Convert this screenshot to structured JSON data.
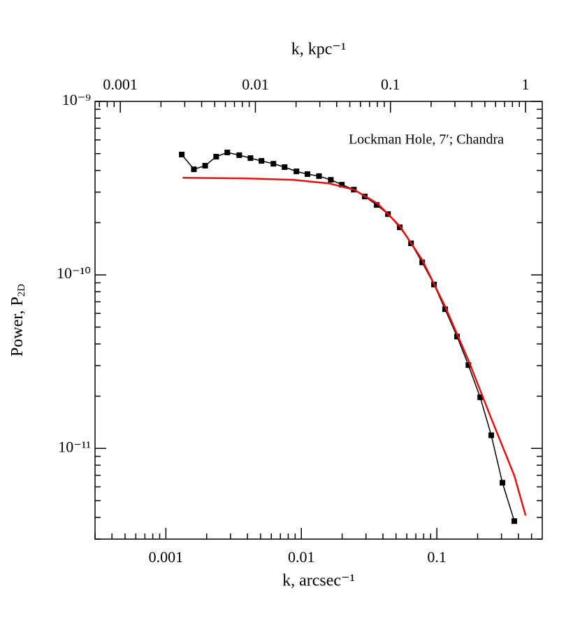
{
  "chart_data": {
    "type": "line",
    "annotation": "Lockman Hole, 7′; Chandra",
    "x_label": "k, arcsec⁻¹",
    "x2_label": "k, kpc⁻¹",
    "y_label": {
      "text": "Power, P",
      "subscript": "2D"
    },
    "xscale": "log",
    "yscale": "log",
    "xlim": [
      0.0003,
      0.6
    ],
    "xticks": [
      0.001,
      0.01,
      0.1
    ],
    "x2lim": [
      0.00065,
      1.33
    ],
    "x2ticks": [
      0.001,
      0.01,
      0.1,
      1
    ],
    "ylim": [
      3e-12,
      1e-09
    ],
    "yticks": [
      {
        "value": 1e-09,
        "label": "10⁻⁹"
      },
      {
        "value": 1e-10,
        "label": "10⁻¹⁰"
      },
      {
        "value": 1e-11,
        "label": "10⁻¹¹"
      }
    ],
    "series": [
      {
        "color": "#000000",
        "markers": true,
        "x": [
          0.00131,
          0.00161,
          0.00195,
          0.00235,
          0.00284,
          0.00348,
          0.00421,
          0.00508,
          0.00622,
          0.00752,
          0.0092,
          0.0111,
          0.0135,
          0.0165,
          0.0199,
          0.0244,
          0.0294,
          0.036,
          0.0436,
          0.0533,
          0.0645,
          0.078,
          0.0953,
          0.115,
          0.141,
          0.171,
          0.209,
          0.252,
          0.305,
          0.373
        ],
        "y": [
          4.94e-10,
          4.06e-10,
          4.26e-10,
          4.8e-10,
          5.08e-10,
          4.9e-10,
          4.71e-10,
          4.54e-10,
          4.37e-10,
          4.18e-10,
          3.95e-10,
          3.81e-10,
          3.71e-10,
          3.53e-10,
          3.31e-10,
          3.1e-10,
          2.83e-10,
          2.53e-10,
          2.24e-10,
          1.88e-10,
          1.52e-10,
          1.18e-10,
          8.8e-11,
          6.34e-11,
          4.41e-11,
          3.02e-11,
          1.97e-11,
          1.19e-11,
          6.34e-12,
          3.81e-12
        ]
      },
      {
        "color": "#e8100f",
        "markers": false,
        "x": [
          0.00133,
          0.00382,
          0.00877,
          0.0159,
          0.0244,
          0.0365,
          0.0533,
          0.078,
          0.115,
          0.171,
          0.252,
          0.373,
          0.452
        ],
        "y": [
          3.63e-10,
          3.6e-10,
          3.53e-10,
          3.37e-10,
          3.1e-10,
          2.58e-10,
          1.91e-10,
          1.22e-10,
          6.59e-11,
          3.22e-11,
          1.49e-11,
          6.97e-12,
          4.1e-12
        ]
      }
    ]
  }
}
